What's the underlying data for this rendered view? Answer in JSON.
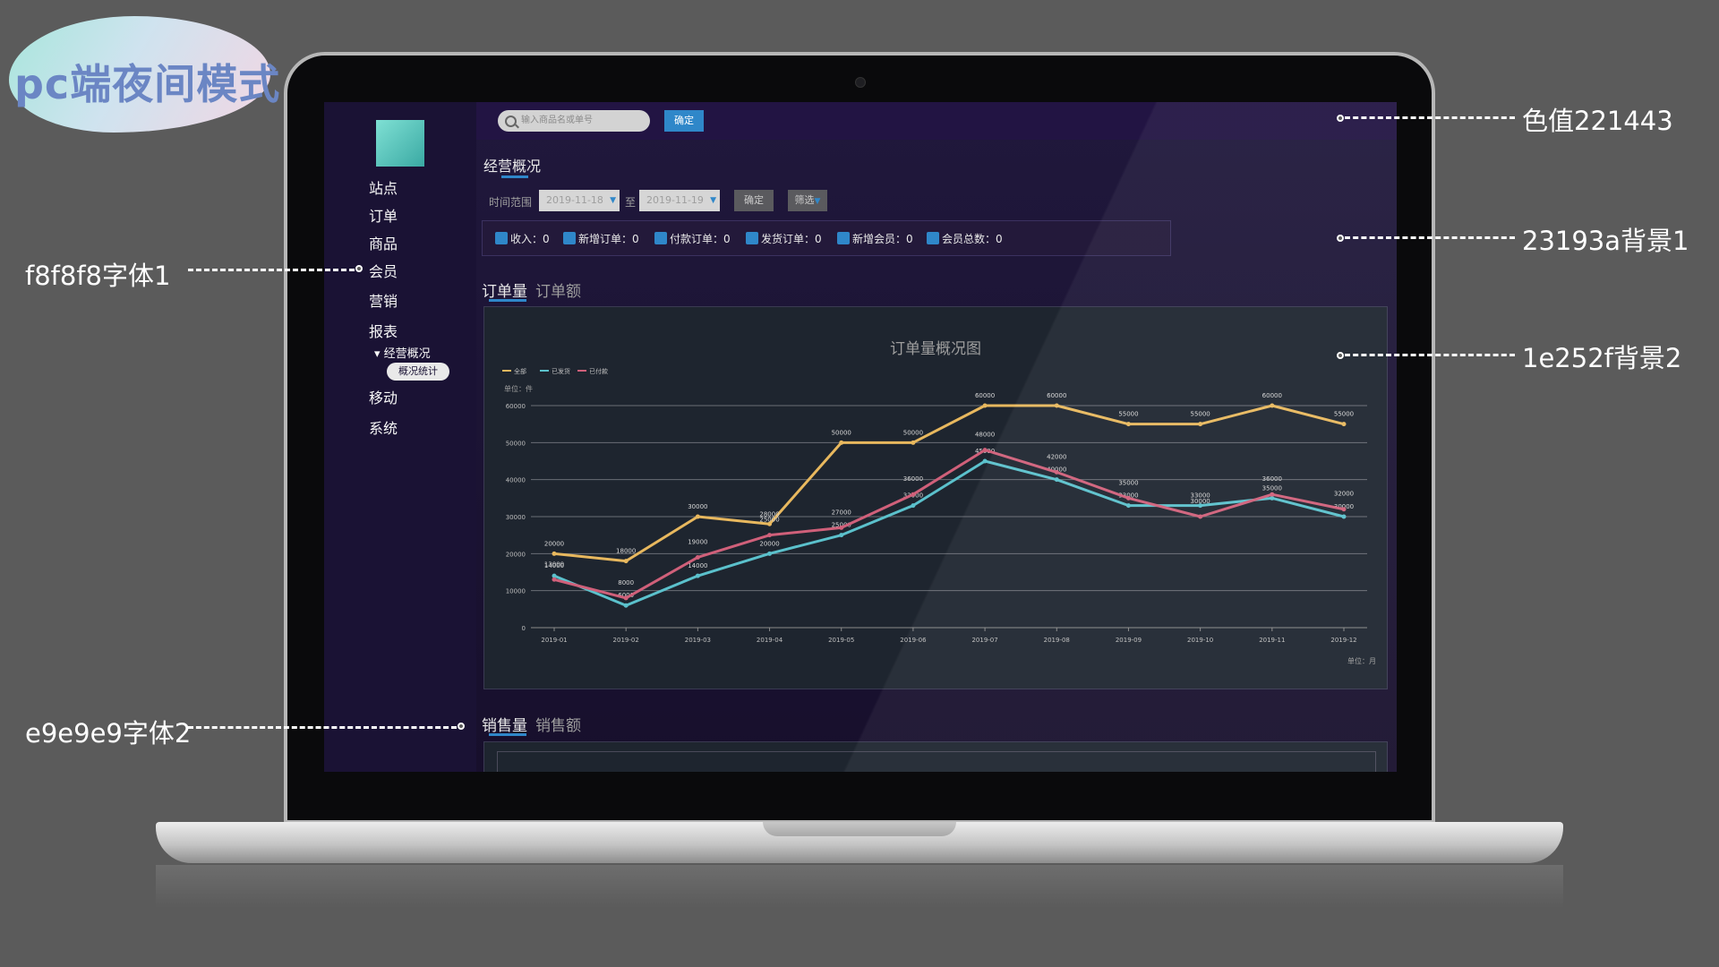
{
  "title": "pc端夜间模式",
  "annotations": [
    {
      "text": "色值221443"
    },
    {
      "text": "23193a背景1"
    },
    {
      "text": "1e252f背景2"
    },
    {
      "text": "f8f8f8字体1"
    },
    {
      "text": "e9e9e9字体2"
    }
  ],
  "colors": {
    "topbar": "#221443",
    "bg1": "#23193a",
    "bg2": "#1e252f",
    "font1": "#f8f8f8",
    "font2": "#e9e9e9",
    "accent": "#2f87c9"
  },
  "sidebar": {
    "items": [
      {
        "label": "站点"
      },
      {
        "label": "订单"
      },
      {
        "label": "商品"
      },
      {
        "label": "会员"
      },
      {
        "label": "营销"
      },
      {
        "label": "报表"
      },
      {
        "label": "移动"
      },
      {
        "label": "系统"
      }
    ],
    "sub_item": "▾ 经营概况",
    "active_pill": "概况统计"
  },
  "topbar": {
    "search_placeholder": "输入商品名或单号",
    "confirm_label": "确定"
  },
  "overview": {
    "title": "经营概况",
    "time_range_label": "时间范围",
    "date_from": "2019-11-18",
    "to_label": "至",
    "date_to": "2019-11-19",
    "confirm_label": "确定",
    "filter_label": "筛选"
  },
  "stats": [
    {
      "label": "收入：0",
      "icon": "income-icon"
    },
    {
      "label": "新增订单：0",
      "icon": "new-order-icon"
    },
    {
      "label": "付款订单：0",
      "icon": "paid-order-icon"
    },
    {
      "label": "发货订单：0",
      "icon": "shipped-order-icon"
    },
    {
      "label": "新增会员：0",
      "icon": "new-member-icon"
    },
    {
      "label": "会员总数：0",
      "icon": "member-total-icon"
    }
  ],
  "order_tabs": [
    {
      "label": "订单量"
    },
    {
      "label": "订单额"
    }
  ],
  "sales_tabs": [
    {
      "label": "销售量"
    },
    {
      "label": "销售额"
    }
  ],
  "chart_data": {
    "type": "line",
    "title": "订单量概况图",
    "ylabel": "单位：件",
    "xlabel": "单位：月",
    "categories": [
      "2019-01",
      "2019-02",
      "2019-03",
      "2019-04",
      "2019-05",
      "2019-06",
      "2019-07",
      "2019-08",
      "2019-09",
      "2019-10",
      "2019-11",
      "2019-12"
    ],
    "yticks": [
      0,
      10000,
      20000,
      30000,
      40000,
      50000,
      60000
    ],
    "ylim": [
      0,
      60000
    ],
    "grid": true,
    "legend_position": "top-left",
    "series": [
      {
        "name": "全部",
        "color": "#e8b85e",
        "values": [
          20000,
          18000,
          30000,
          28000,
          50000,
          50000,
          60000,
          60000,
          55000,
          55000,
          60000,
          55000
        ]
      },
      {
        "name": "已发货",
        "color": "#5bc1cc",
        "values": [
          14000,
          6000,
          14000,
          20000,
          25000,
          33000,
          45000,
          40000,
          33000,
          33000,
          35000,
          30000
        ]
      },
      {
        "name": "已付款",
        "color": "#d0607a",
        "values": [
          13000,
          8000,
          19000,
          25000,
          27000,
          36000,
          48000,
          42000,
          35000,
          30000,
          36000,
          32000
        ]
      }
    ]
  }
}
